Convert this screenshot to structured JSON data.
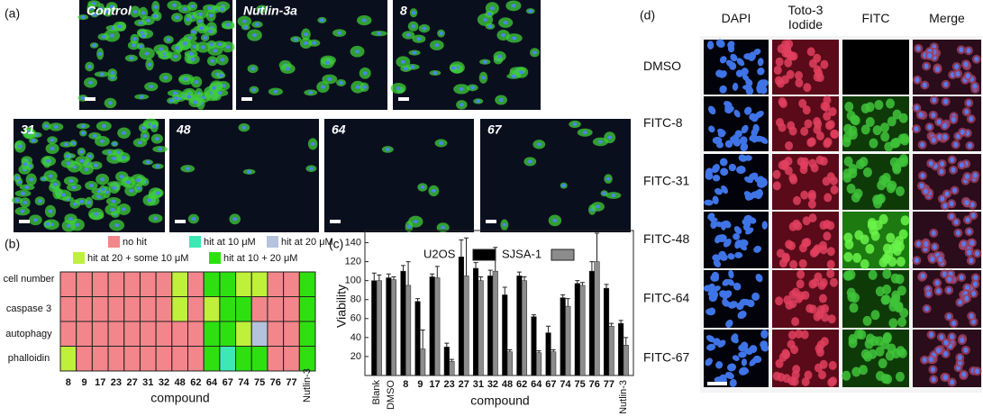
{
  "panel_a": {
    "label": "(a)",
    "images": [
      "Control",
      "Nutlin-3a",
      "8",
      "31",
      "48",
      "64",
      "67"
    ]
  },
  "panel_b": {
    "label": "(b)",
    "legend": [
      {
        "label": "no hit",
        "color": "#f2868a"
      },
      {
        "label": "hit at 10 μM",
        "color": "#3ee8b4"
      },
      {
        "label": "hit at 20 μM",
        "color": "#b4c2dc"
      },
      {
        "label": "hit at 20 + some 10 μM",
        "color": "#bff03a"
      },
      {
        "label": "hit at 10 + 20 μM",
        "color": "#2ee010"
      }
    ],
    "columns": [
      "8",
      "9",
      "17",
      "23",
      "27",
      "31",
      "32",
      "48",
      "62",
      "64",
      "67",
      "74",
      "75",
      "76",
      "77",
      "Nutlin-3"
    ],
    "rows": [
      {
        "label": "cell number",
        "cells": [
          0,
          0,
          0,
          0,
          0,
          0,
          0,
          3,
          0,
          4,
          4,
          3,
          3,
          0,
          0,
          4
        ]
      },
      {
        "label": "caspase 3",
        "cells": [
          0,
          0,
          0,
          0,
          0,
          0,
          0,
          3,
          0,
          3,
          4,
          4,
          0,
          0,
          0,
          4
        ]
      },
      {
        "label": "autophagy",
        "cells": [
          0,
          0,
          0,
          0,
          0,
          0,
          0,
          0,
          0,
          4,
          4,
          3,
          2,
          0,
          0,
          4
        ]
      },
      {
        "label": "phalloidin",
        "cells": [
          3,
          0,
          0,
          0,
          0,
          0,
          0,
          0,
          0,
          4,
          1,
          4,
          4,
          0,
          0,
          4
        ]
      }
    ],
    "x_label": "compound"
  },
  "chart_data": {
    "type": "bar",
    "panel_label": "(c)",
    "categories": [
      "Blank",
      "DMSO",
      "8",
      "9",
      "17",
      "23",
      "27",
      "31",
      "32",
      "48",
      "62",
      "64",
      "67",
      "74",
      "75",
      "76",
      "77",
      "Nutlin-3"
    ],
    "series": [
      {
        "name": "U2OS",
        "color": "#000000",
        "values": [
          100,
          103,
          110,
          78,
          104,
          30,
          125,
          113,
          105,
          85,
          105,
          62,
          45,
          82,
          97,
          110,
          92,
          55
        ],
        "errors": [
          8,
          4,
          6,
          3,
          3,
          4,
          18,
          6,
          6,
          8,
          4,
          2,
          7,
          3,
          3,
          10,
          4,
          3
        ]
      },
      {
        "name": "SJSA-1",
        "color": "#8c8c8c",
        "values": [
          100,
          101,
          95,
          28,
          103,
          15,
          105,
          100,
          110,
          25,
          100,
          24,
          25,
          73,
          95,
          120,
          52,
          32
        ],
        "errors": [
          6,
          3,
          25,
          20,
          12,
          2,
          40,
          4,
          25,
          2,
          4,
          2,
          2,
          8,
          3,
          30,
          3,
          8
        ]
      }
    ],
    "ylim": [
      0,
      150
    ],
    "yticks": [
      20,
      40,
      60,
      80,
      100,
      120,
      140
    ],
    "y_label": "Viability",
    "x_label": "compound"
  },
  "panel_d": {
    "label": "(d)",
    "columns": [
      "DAPI",
      "Toto-3 Iodide",
      "FITC",
      "Merge"
    ],
    "rows": [
      "DMSO",
      "FITC-8",
      "FITC-31",
      "FITC-48",
      "FITC-64",
      "FITC-67"
    ]
  }
}
